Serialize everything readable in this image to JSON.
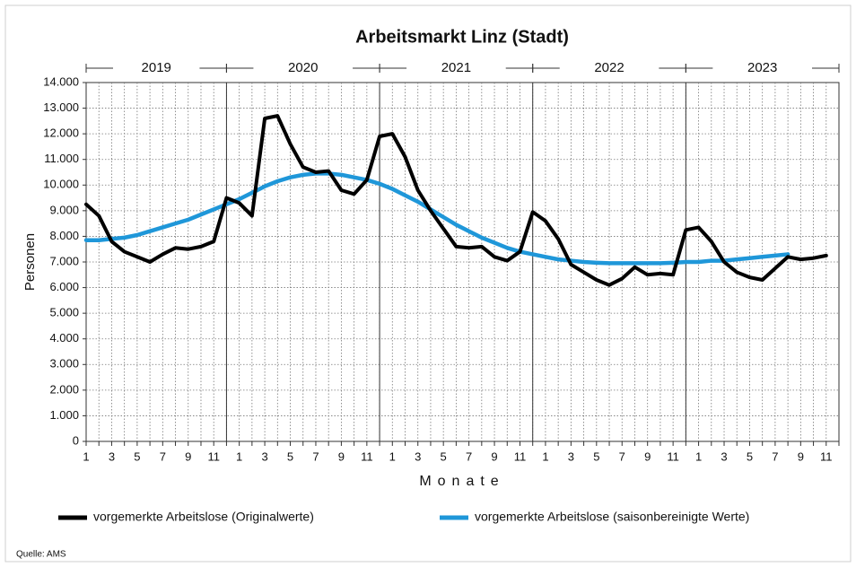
{
  "chart_data": {
    "type": "line",
    "title": "Arbeitsmarkt Linz (Stadt)",
    "y_label": "Personen",
    "x_label": "Monate",
    "source": "Quelle: AMS",
    "years": [
      "2019",
      "2020",
      "2021",
      "2022",
      "2023"
    ],
    "categories": [
      "1",
      null,
      "3",
      null,
      "5",
      null,
      "7",
      null,
      "9",
      null,
      "11",
      null,
      "1",
      null,
      "3",
      null,
      "5",
      null,
      "7",
      null,
      "9",
      null,
      "11",
      null,
      "1",
      null,
      "3",
      null,
      "5",
      null,
      "7",
      null,
      "9",
      null,
      "11",
      null,
      "1",
      null,
      "3",
      null,
      "5",
      null,
      "7",
      null,
      "9",
      null,
      "11",
      null,
      "1",
      null,
      "3",
      null,
      "5",
      null,
      "7",
      null,
      "9",
      null,
      "11",
      null
    ],
    "series": [
      {
        "name": "vorgemerkte Arbeitslose (Originalwerte)",
        "color": "#000000",
        "values": [
          9250,
          8800,
          7800,
          7400,
          7200,
          7000,
          7300,
          7550,
          7500,
          7600,
          7800,
          9500,
          9300,
          8800,
          12600,
          12700,
          11600,
          10700,
          10500,
          10550,
          9800,
          9650,
          10200,
          11900,
          12000,
          11100,
          9800,
          9000,
          8300,
          7600,
          7550,
          7600,
          7200,
          7050,
          7400,
          8950,
          8600,
          7900,
          6900,
          6600,
          6300,
          6100,
          6350,
          6800,
          6500,
          6550,
          6500,
          8250,
          8350,
          7800,
          7000,
          6600,
          6400,
          6300,
          6750,
          7200,
          7100,
          7150,
          7250,
          null
        ]
      },
      {
        "name": "vorgemerkte Arbeitslose (saisonbereinigte Werte)",
        "color": "#1f97d9",
        "values": [
          7850,
          7850,
          7900,
          7950,
          8050,
          8200,
          8350,
          8500,
          8650,
          8850,
          9050,
          9250,
          9450,
          9700,
          9950,
          10150,
          10300,
          10400,
          10450,
          10450,
          10400,
          10300,
          10200,
          10050,
          9850,
          9600,
          9350,
          9050,
          8750,
          8450,
          8200,
          7950,
          7750,
          7550,
          7400,
          7300,
          7200,
          7100,
          7050,
          7000,
          6970,
          6950,
          6950,
          6950,
          6950,
          6950,
          6970,
          7000,
          7000,
          7050,
          7050,
          7100,
          7150,
          7200,
          7250,
          7300,
          null,
          null,
          null,
          null
        ]
      }
    ],
    "ylim": [
      0,
      14000
    ],
    "yticks": [
      0,
      {
        "value": 1000,
        "label": "1.000"
      },
      {
        "value": 2000,
        "label": "2.000"
      },
      {
        "value": 3000,
        "label": "3.000"
      },
      {
        "value": 4000,
        "label": "4.000"
      },
      {
        "value": 5000,
        "label": "5.000"
      },
      {
        "value": 6000,
        "label": "6.000"
      },
      {
        "value": 7000,
        "label": "7.000"
      },
      {
        "value": 8000,
        "label": "8.000"
      },
      {
        "value": 9000,
        "label": "9.000"
      },
      {
        "value": 10000,
        "label": "10.000"
      },
      {
        "value": 11000,
        "label": "11.000"
      },
      {
        "value": 12000,
        "label": "12.000"
      },
      {
        "value": 13000,
        "label": "13.000"
      },
      {
        "value": 14000,
        "label": "14.000"
      }
    ],
    "grid": true
  }
}
